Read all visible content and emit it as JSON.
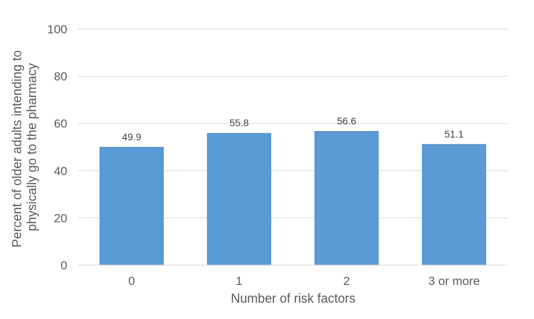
{
  "chart_data": {
    "type": "bar",
    "title": "",
    "categories": [
      "0",
      "1",
      "2",
      "3 or more"
    ],
    "values": [
      49.9,
      55.8,
      56.6,
      51.1
    ],
    "data_labels": [
      "49.9",
      "55.8",
      "56.6",
      "51.1"
    ],
    "xlabel": "Number of risk factors",
    "ylabel_lines": [
      "Percent of older adults intending to",
      "physically go to the pharmacy"
    ],
    "ylim": [
      0,
      100
    ],
    "yticks": [
      0,
      20,
      40,
      60,
      80,
      100
    ],
    "ytick_labels": [
      "0",
      "20",
      "40",
      "60",
      "80",
      "100"
    ],
    "grid": true,
    "legend": "none",
    "bar_color": "#5b9bd5",
    "bar_edge_color": "#4a86c0"
  }
}
